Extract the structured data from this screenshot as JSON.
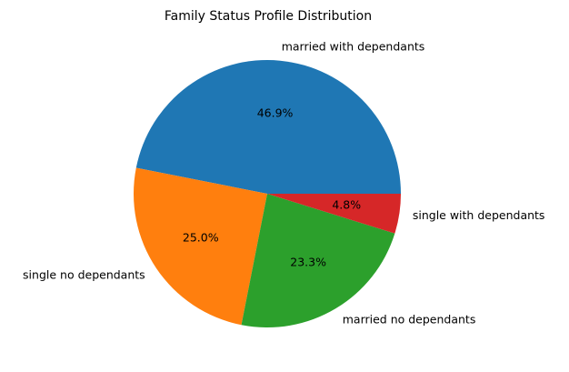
{
  "chart_data": {
    "type": "pie",
    "title": "Family Status Profile Distribution",
    "start_angle_deg": 0,
    "direction": "counterclockwise",
    "slices": [
      {
        "label": "married with dependants",
        "value": 46.9,
        "pct_label": "46.9%",
        "color": "#1f77b4"
      },
      {
        "label": "single no dependants",
        "value": 25.0,
        "pct_label": "25.0%",
        "color": "#ff7f0e"
      },
      {
        "label": "married no dependants",
        "value": 23.3,
        "pct_label": "23.3%",
        "color": "#2ca02c"
      },
      {
        "label": "single with dependants",
        "value": 4.8,
        "pct_label": "4.8%",
        "color": "#d62728"
      }
    ]
  }
}
